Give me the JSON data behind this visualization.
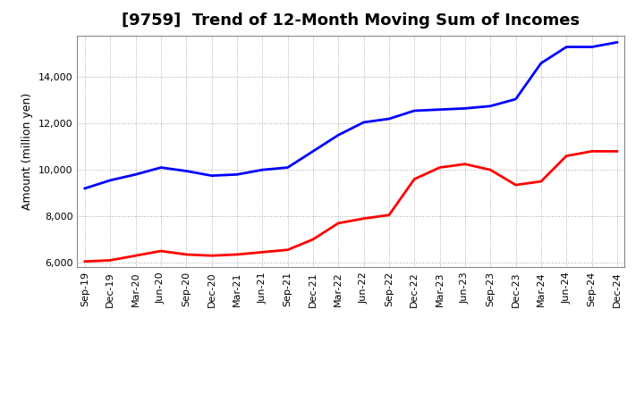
{
  "title": "[9759]  Trend of 12-Month Moving Sum of Incomes",
  "ylabel": "Amount (million yen)",
  "ylim": [
    5800,
    15800
  ],
  "yticks": [
    6000,
    8000,
    10000,
    12000,
    14000
  ],
  "background_color": "#ffffff",
  "grid_color": "#aaaaaa",
  "x_labels": [
    "Sep-19",
    "Dec-19",
    "Mar-20",
    "Jun-20",
    "Sep-20",
    "Dec-20",
    "Mar-21",
    "Jun-21",
    "Sep-21",
    "Dec-21",
    "Mar-22",
    "Jun-22",
    "Sep-22",
    "Dec-22",
    "Mar-23",
    "Jun-23",
    "Sep-23",
    "Dec-23",
    "Mar-24",
    "Jun-24",
    "Sep-24",
    "Dec-24"
  ],
  "ordinary_income": [
    9200,
    9550,
    9800,
    10100,
    9950,
    9750,
    9800,
    10000,
    10100,
    10800,
    11500,
    12050,
    12200,
    12550,
    12600,
    12650,
    12750,
    13050,
    14600,
    15300,
    15300,
    15500
  ],
  "net_income": [
    6050,
    6100,
    6300,
    6500,
    6350,
    6300,
    6350,
    6450,
    6550,
    7000,
    7700,
    7900,
    8050,
    9600,
    10100,
    10250,
    10000,
    9350,
    9500,
    10600,
    10800,
    10800
  ],
  "ordinary_color": "#0000ff",
  "net_color": "#ff0000",
  "line_width": 2.0,
  "title_fontsize": 13,
  "tick_fontsize": 8,
  "ylabel_fontsize": 9,
  "legend_fontsize": 9
}
